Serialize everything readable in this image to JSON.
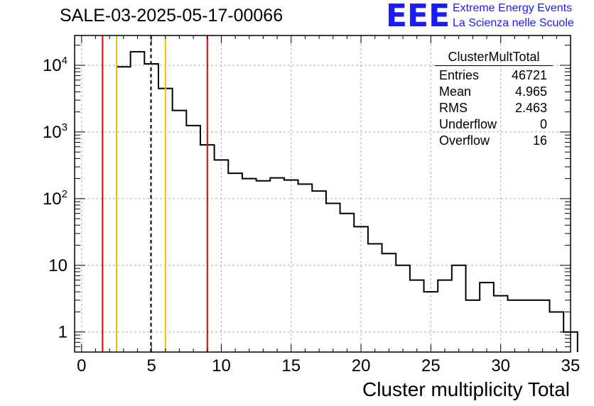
{
  "header": {
    "title": "SALE-03-2025-05-17-00066",
    "logo_text": "EEE",
    "logo_line1": "Extreme Energy Events",
    "logo_line2": "La Scienza nelle Scuole"
  },
  "stats_box": {
    "title": "ClusterMultTotal",
    "rows": [
      {
        "label": "Entries",
        "value": "46721"
      },
      {
        "label": "Mean",
        "value": "4.965"
      },
      {
        "label": "RMS",
        "value": "2.463"
      },
      {
        "label": "Underflow",
        "value": "0"
      },
      {
        "label": "Overflow",
        "value": "16"
      }
    ]
  },
  "colors": {
    "histogram": "#000000",
    "red_lines": "#e00000",
    "yellow_lines": "#f0c000",
    "mean_line": "#000000",
    "grid": "#b0b0b0"
  },
  "chart_data": {
    "type": "histogram",
    "title": "SALE-03-2025-05-17-00066",
    "xlabel": "Cluster multiplicity Total",
    "ylabel": "",
    "yscale": "log",
    "xlim": [
      -0.5,
      35
    ],
    "ylim": [
      0.5,
      28000
    ],
    "grid": true,
    "bin_edges_start": 2.5,
    "bin_width": 1,
    "values": [
      9500,
      16000,
      10500,
      4500,
      2100,
      1250,
      640,
      380,
      240,
      200,
      185,
      205,
      190,
      165,
      130,
      85,
      60,
      38,
      21,
      15,
      10,
      6,
      4,
      6,
      10,
      3,
      5.5,
      3.5,
      3,
      3,
      3,
      2,
      1
    ],
    "x_ticks": [
      0,
      5,
      10,
      15,
      20,
      25,
      30,
      35
    ],
    "x_tick_labels": [
      "0",
      "5",
      "10",
      "15",
      "20",
      "25",
      "30",
      "35"
    ],
    "y_ticks": [
      1,
      10,
      100,
      1000,
      10000
    ],
    "y_tick_labels": [
      {
        "base": "1",
        "exp": ""
      },
      {
        "base": "10",
        "exp": ""
      },
      {
        "base": "10",
        "exp": "2"
      },
      {
        "base": "10",
        "exp": "3"
      },
      {
        "base": "10",
        "exp": "4"
      }
    ],
    "vertical_lines": [
      {
        "x": 1.5,
        "color": "red",
        "style": "solid"
      },
      {
        "x": 9,
        "color": "red",
        "style": "solid"
      },
      {
        "x": 2.5,
        "color": "yellow",
        "style": "solid"
      },
      {
        "x": 6,
        "color": "yellow",
        "style": "solid"
      },
      {
        "x": 4.965,
        "color": "black",
        "style": "dashed"
      }
    ]
  }
}
